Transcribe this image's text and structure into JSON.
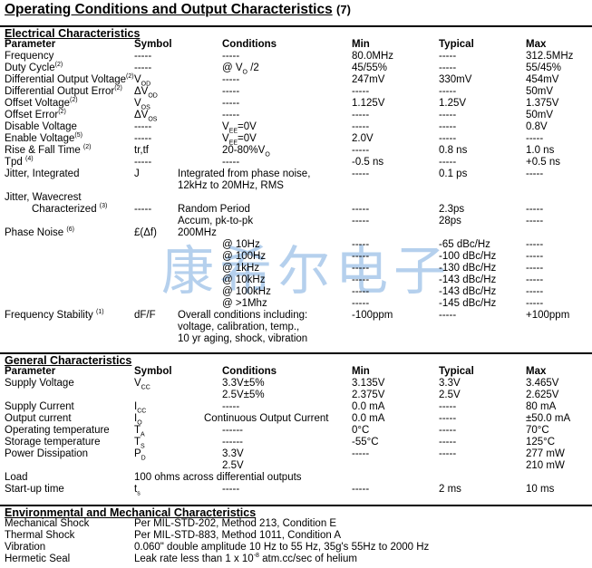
{
  "title": "Operating Conditions and Output Characteristics",
  "note": "(7)",
  "watermark": "康希尔电子",
  "sections": [
    {
      "title": "Electrical Characteristics",
      "header": [
        "Parameter",
        "Symbol",
        "Conditions",
        "Min",
        "Typical",
        "Max"
      ],
      "rows": [
        [
          "Frequency",
          "-----",
          "-----",
          "80.0MHz",
          "-----",
          "312.5MHz"
        ],
        [
          [
            "Duty Cycle",
            {
              "sup": "(2)"
            }
          ],
          "-----",
          [
            "@ V",
            {
              "sub": "O"
            },
            " /2"
          ],
          "45/55%",
          "-----",
          "55/45%"
        ],
        [
          [
            "Differential Output Voltage",
            {
              "sup": "(2)"
            }
          ],
          [
            "V",
            {
              "sub": "OD"
            }
          ],
          "-----",
          "247mV",
          "330mV",
          "454mV"
        ],
        [
          [
            "Differential Output Error",
            {
              "sup": "(2)"
            }
          ],
          [
            "ΔV",
            {
              "sub": "OD"
            }
          ],
          "-----",
          "-----",
          "-----",
          "50mV"
        ],
        [
          [
            "Offset Voltage",
            {
              "sup": "(2)"
            }
          ],
          [
            "V",
            {
              "sub": "OS"
            }
          ],
          "-----",
          "1.125V",
          "1.25V",
          "1.375V"
        ],
        [
          [
            "Offset Error",
            {
              "sup": "(2)"
            }
          ],
          [
            "ΔV",
            {
              "sub": "OS"
            }
          ],
          "-----",
          "-----",
          "-----",
          "50mV"
        ],
        [
          "Disable Voltage",
          "-----",
          [
            "V",
            {
              "sub": "EE"
            },
            "=0V"
          ],
          "-----",
          "-----",
          "0.8V"
        ],
        [
          [
            "Enable Voltage",
            {
              "sup": "(5)"
            }
          ],
          "-----",
          [
            "V",
            {
              "sub": "EE"
            },
            "=0V"
          ],
          "2.0V",
          "-----",
          "-----"
        ],
        [
          [
            "Rise & Fall Time ",
            {
              "sup": "(2)"
            }
          ],
          "tr,tf",
          [
            "20-80%V",
            {
              "sub": "O"
            }
          ],
          "-----",
          "0.8 ns",
          "1.0 ns"
        ],
        [
          [
            "Tpd ",
            {
              "sup": "(4)"
            }
          ],
          "-----",
          "-----",
          "-0.5 ns",
          "-----",
          "+0.5 ns"
        ],
        [
          "Jitter, Integrated",
          "J",
          "Integrated from phase noise,",
          "-----",
          "0.1 ps",
          "-----"
        ],
        [
          null,
          null,
          "12kHz to 20MHz, RMS",
          null,
          null,
          null
        ],
        [
          "Jitter, Wavecrest",
          null,
          null,
          null,
          null,
          null
        ],
        [
          [
            "Characterized ",
            {
              "sup": "(3)"
            }
          ],
          "-----",
          "Random Period",
          "-----",
          "2.3ps",
          "-----"
        ],
        [
          null,
          null,
          "Accum, pk-to-pk",
          "-----",
          "28ps",
          "-----"
        ],
        [
          [
            "Phase Noise ",
            {
              "sup": "(6)"
            }
          ],
          "£(Δf)",
          "200MHz",
          null,
          null,
          null
        ],
        [
          null,
          null,
          "@ 10Hz",
          "-----",
          "-65 dBc/Hz",
          "-----"
        ],
        [
          null,
          null,
          "@ 100Hz",
          "-----",
          "-100 dBc/Hz",
          "-----"
        ],
        [
          null,
          null,
          "@ 1kHz",
          "-----",
          "-130 dBc/Hz",
          "-----"
        ],
        [
          null,
          null,
          "@ 10kHz",
          "-----",
          "-143 dBc/Hz",
          "-----"
        ],
        [
          null,
          null,
          "@ 100kHz",
          "-----",
          "-143 dBc/Hz",
          "-----"
        ],
        [
          null,
          null,
          "@ >1Mhz",
          "-----",
          "-145 dBc/Hz",
          "-----"
        ],
        [
          [
            "Frequency Stability ",
            {
              "sup": "(1)"
            }
          ],
          "dF/F",
          "Overall conditions including:",
          "-100ppm",
          "-----",
          "+100ppm"
        ],
        [
          null,
          null,
          "voltage, calibration, temp.,",
          null,
          null,
          null
        ],
        [
          null,
          null,
          "10 yr aging, shock, vibration",
          null,
          null,
          null
        ]
      ]
    },
    {
      "title": "General Characteristics",
      "header": [
        "Parameter",
        "Symbol",
        "Conditions",
        "Min",
        "Typical",
        "Max"
      ],
      "rows": [
        [
          "Supply Voltage",
          [
            "V",
            {
              "sub": "CC"
            }
          ],
          "3.3V±5%",
          "3.135V",
          "3.3V",
          "3.465V"
        ],
        [
          null,
          null,
          "2.5V±5%",
          "2.375V",
          "2.5V",
          "2.625V"
        ],
        [
          "Supply Current",
          [
            "I",
            {
              "sub": "CC"
            }
          ],
          "-----",
          "0.0 mA",
          "-----",
          "80 mA"
        ],
        [
          "Output current",
          [
            "I",
            {
              "sub": "O"
            }
          ],
          "Continuous Output Current",
          "0.0 mA",
          "-----",
          "±50.0 mA"
        ],
        [
          "Operating temperature",
          [
            "T",
            {
              "sub": "A"
            }
          ],
          "------",
          "0°C",
          "-----",
          "70°C"
        ],
        [
          "Storage temperature",
          [
            "T",
            {
              "sub": "S"
            }
          ],
          "------",
          "-55°C",
          "-----",
          "125°C"
        ],
        [
          "Power Dissipation",
          [
            "P",
            {
              "sub": "D"
            }
          ],
          "3.3V",
          "-----",
          "-----",
          "277 mW"
        ],
        [
          null,
          null,
          "2.5V",
          null,
          null,
          "210 mW"
        ],
        [
          "Load",
          "100 ohms across differential outputs",
          null,
          null,
          null,
          null
        ],
        [
          "Start-up time",
          [
            "t",
            {
              "sub": "s"
            }
          ],
          "-----",
          "-----",
          "2 ms",
          "10 ms"
        ]
      ]
    },
    {
      "title": "Environmental and Mechanical Characteristics",
      "rows": [
        [
          "Mechanical Shock",
          "Per MIL-STD-202, Method 213, Condition E"
        ],
        [
          "Thermal Shock",
          "Per MIL-STD-883, Method 1011, Condition A"
        ],
        [
          "Vibration",
          "0.060\" double amplitude 10 Hz to 55 Hz, 35g's 55Hz to 2000 Hz"
        ],
        [
          "Hermetic Seal",
          [
            "Leak rate less than 1 x 10",
            {
              "sup": "-8"
            },
            " atm.cc/sec of helium"
          ]
        ]
      ]
    }
  ]
}
